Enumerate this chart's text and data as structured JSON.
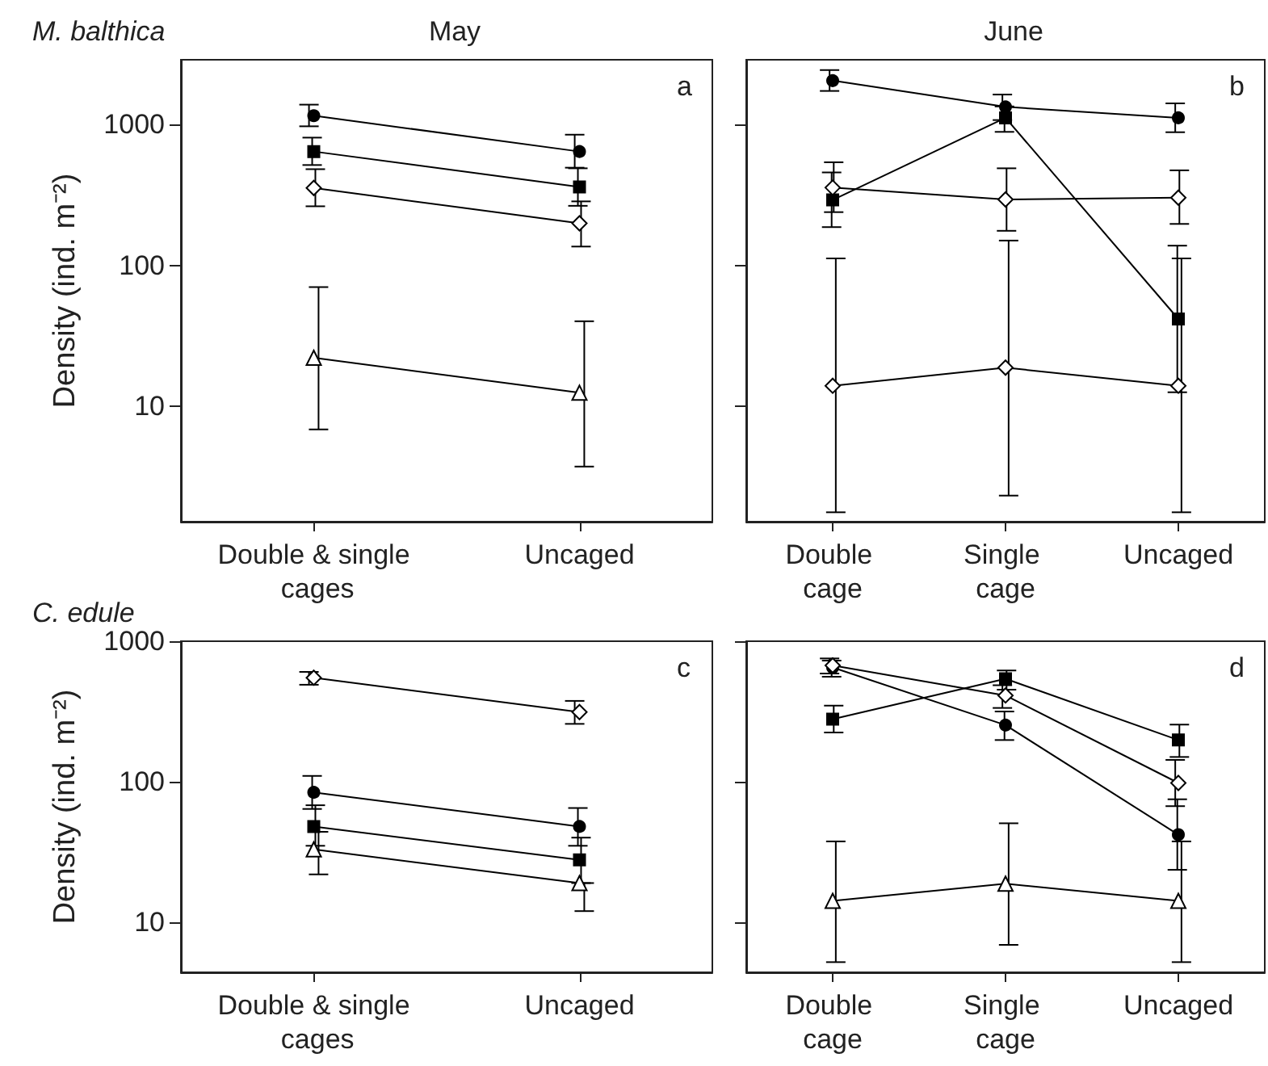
{
  "chart_data": [
    {
      "type": "line",
      "title": "May",
      "subtitle": "M. balthica",
      "ylabel": "Density (ind. m⁻²)",
      "categories": [
        "Double & single cages",
        "Uncaged"
      ],
      "log": "y",
      "ylim": [
        1.5,
        2900
      ],
      "yticks": [
        10,
        100,
        1000
      ],
      "annotations": [
        "a"
      ],
      "series": [
        {
          "color": "#000000",
          "marker": "circle",
          "values": [
            1160,
            645
          ],
          "errors": [
            [
              975,
              1390
            ],
            [
              495,
              850
            ]
          ]
        },
        {
          "color": "#000000",
          "marker": "square",
          "values": [
            645,
            361
          ],
          "errors": [
            [
              517,
              810
            ],
            [
              265,
              490
            ]
          ]
        },
        {
          "color": "#000000",
          "marker": "diamond",
          "values": [
            355,
            199
          ],
          "errors": [
            [
              263,
              483
            ],
            [
              136,
              285
            ]
          ]
        },
        {
          "color": "#000000",
          "marker": "triangle",
          "values": [
            22,
            12.4
          ],
          "errors": [
            [
              6.8,
              70
            ],
            [
              3.7,
              40
            ]
          ]
        }
      ]
    },
    {
      "type": "line",
      "title": "June",
      "categories": [
        "Double cage",
        "Single cage",
        "Uncaged"
      ],
      "log": "y",
      "ylim": [
        1.5,
        2900
      ],
      "yticks": [
        10,
        100,
        1000
      ],
      "tick_labels": "x",
      "annotations": [
        "b"
      ],
      "series": [
        {
          "color": "#000000",
          "marker": "circle",
          "values": [
            2060,
            1340,
            1120
          ],
          "errors": [
            [
              1740,
              2450
            ],
            [
              1080,
              1640
            ],
            [
              885,
              1420
            ]
          ]
        },
        {
          "color": "#000000",
          "marker": "square",
          "values": [
            292,
            1120,
            41.5
          ],
          "errors": [
            [
              187,
              458
            ],
            [
              890,
              1350
            ],
            [
              12.5,
              138
            ]
          ]
        },
        {
          "color": "#000000",
          "marker": "diamond",
          "values": [
            357,
            294,
            303
          ],
          "errors": [
            [
              239,
              541
            ],
            [
              176,
              490
            ],
            [
              197,
              474
            ]
          ]
        },
        {
          "color": "#000000",
          "marker": "diamond",
          "values": [
            13.9,
            18.7,
            13.9
          ],
          "errors": [
            [
              1.75,
              112
            ],
            [
              2.3,
              150
            ],
            [
              1.75,
              112
            ]
          ]
        }
      ]
    },
    {
      "type": "line",
      "subtitle": "C. edule",
      "ylabel": "Density (ind. m⁻²)",
      "categories": [
        "Double & single cages",
        "Uncaged"
      ],
      "log": "y",
      "ylim": [
        4.4,
        1000
      ],
      "yticks": [
        10,
        100,
        1000
      ],
      "annotations": [
        "c"
      ],
      "series": [
        {
          "color": "#000000",
          "marker": "diamond",
          "values": [
            550,
            313
          ],
          "errors": [
            [
              490,
              605
            ],
            [
              258,
              376
            ]
          ]
        },
        {
          "color": "#000000",
          "marker": "circle",
          "values": [
            84,
            48
          ],
          "errors": [
            [
              64,
              110
            ],
            [
              35,
              65
            ]
          ]
        },
        {
          "color": "#000000",
          "marker": "square",
          "values": [
            48,
            27.8
          ],
          "errors": [
            [
              35,
              68
            ],
            [
              19,
              40
            ]
          ]
        },
        {
          "color": "#000000",
          "marker": "triangle",
          "values": [
            33,
            19
          ],
          "errors": [
            [
              21.9,
              44
            ],
            [
              12,
              19
            ]
          ]
        }
      ]
    },
    {
      "type": "line",
      "categories": [
        "Double cage",
        "Single cage",
        "Uncaged"
      ],
      "log": "y",
      "ylim": [
        4.4,
        1000
      ],
      "yticks": [
        10,
        100,
        1000
      ],
      "tick_labels": "x",
      "annotations": [
        "d"
      ],
      "series": [
        {
          "color": "#000000",
          "marker": "diamond",
          "values": [
            673,
            411,
            98
          ],
          "errors": [
            [
              589,
              754
            ],
            [
              335,
              486
            ],
            [
              67,
              143
            ]
          ]
        },
        {
          "color": "#000000",
          "marker": "circle",
          "values": [
            650,
            253,
            42
          ],
          "errors": [
            [
              559,
              728
            ],
            [
              198,
              316
            ],
            [
              23.6,
              75
            ]
          ]
        },
        {
          "color": "#000000",
          "marker": "square",
          "values": [
            279,
            540,
            198
          ],
          "errors": [
            [
              224,
              348
            ],
            [
              452,
              619
            ],
            [
              150,
              255
            ]
          ]
        },
        {
          "color": "#000000",
          "marker": "triangle",
          "values": [
            14.2,
            18.8,
            14.2
          ],
          "errors": [
            [
              5.2,
              37.6
            ],
            [
              6.9,
              50.6
            ],
            [
              5.2,
              37.6
            ]
          ]
        }
      ]
    }
  ]
}
